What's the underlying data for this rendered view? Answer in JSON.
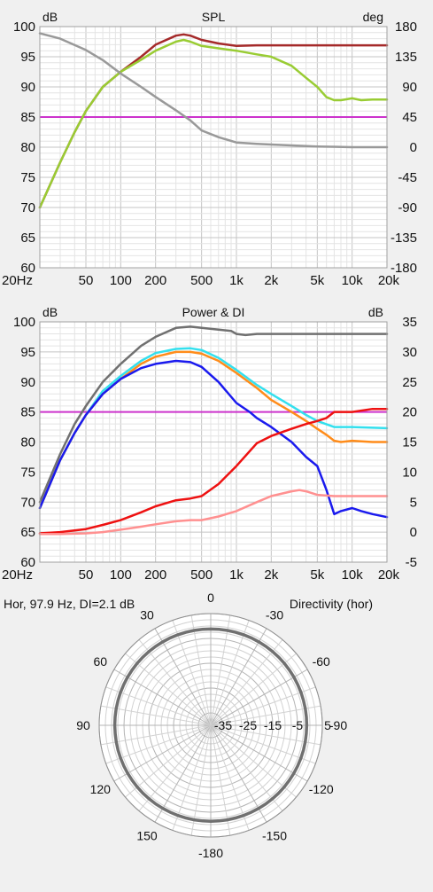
{
  "colors": {
    "background": "#f0f0f0",
    "plot_bg": "#ffffff",
    "grid_major": "#c4c4c4",
    "grid_minor": "#e4e4e4",
    "reference": "#cc33cc"
  },
  "chart_data": [
    {
      "type": "line",
      "title": "SPL",
      "x_scale": "log",
      "xlim": [
        20,
        20000
      ],
      "x_ticks": [
        20,
        50,
        100,
        200,
        500,
        1000,
        2000,
        5000,
        10000,
        20000
      ],
      "x_tick_labels": [
        "20Hz",
        "50",
        "100",
        "200",
        "500",
        "1k",
        "2k",
        "5k",
        "10k",
        "20k"
      ],
      "ylabel_left": "dB",
      "ylim": [
        60,
        100
      ],
      "y_ticks_left": [
        "100",
        "95",
        "90",
        "85",
        "80",
        "75",
        "70",
        "65",
        "60"
      ],
      "ylabel_right": "deg",
      "ylim_right": [
        -180,
        180
      ],
      "y_ticks_right": [
        "180",
        "135",
        "90",
        "45",
        "0",
        "-45",
        "-90",
        "-135",
        "-180"
      ],
      "reference_line_db": 85,
      "grid": true,
      "series": [
        {
          "color": "#a52a2a",
          "axis": "left",
          "points": [
            [
              20,
              70
            ],
            [
              30,
              77.5
            ],
            [
              40,
              82.5
            ],
            [
              50,
              86
            ],
            [
              70,
              90
            ],
            [
              100,
              92.5
            ],
            [
              150,
              95
            ],
            [
              200,
              97
            ],
            [
              300,
              98.5
            ],
            [
              350,
              98.7
            ],
            [
              400,
              98.5
            ],
            [
              500,
              97.8
            ],
            [
              700,
              97.2
            ],
            [
              1000,
              96.8
            ],
            [
              1500,
              96.9
            ],
            [
              2000,
              96.9
            ],
            [
              5000,
              96.9
            ],
            [
              10000,
              96.9
            ],
            [
              20000,
              96.9
            ]
          ]
        },
        {
          "color": "#99cc33",
          "axis": "left",
          "points": [
            [
              20,
              70
            ],
            [
              30,
              77.5
            ],
            [
              40,
              82.5
            ],
            [
              50,
              86
            ],
            [
              70,
              90
            ],
            [
              100,
              92.5
            ],
            [
              150,
              94.5
            ],
            [
              200,
              96
            ],
            [
              300,
              97.5
            ],
            [
              350,
              97.8
            ],
            [
              400,
              97.5
            ],
            [
              500,
              96.8
            ],
            [
              700,
              96.4
            ],
            [
              1000,
              96
            ],
            [
              1500,
              95.4
            ],
            [
              2000,
              95
            ],
            [
              3000,
              93.5
            ],
            [
              4000,
              91.5
            ],
            [
              5000,
              90
            ],
            [
              6000,
              88.3
            ],
            [
              7000,
              87.8
            ],
            [
              8000,
              87.8
            ],
            [
              10000,
              88.1
            ],
            [
              12000,
              87.8
            ],
            [
              15000,
              87.9
            ],
            [
              20000,
              87.9
            ]
          ]
        },
        {
          "color": "#999999",
          "axis": "right",
          "points": [
            [
              20,
              170
            ],
            [
              30,
              162
            ],
            [
              50,
              145
            ],
            [
              70,
              130
            ],
            [
              100,
              110
            ],
            [
              150,
              90
            ],
            [
              200,
              75
            ],
            [
              300,
              55
            ],
            [
              400,
              40
            ],
            [
              500,
              25
            ],
            [
              700,
              15
            ],
            [
              1000,
              7
            ],
            [
              1500,
              5
            ],
            [
              2000,
              4
            ],
            [
              5000,
              1
            ],
            [
              10000,
              0
            ],
            [
              20000,
              0
            ]
          ]
        }
      ]
    },
    {
      "type": "line",
      "title": "Power & DI",
      "x_scale": "log",
      "xlim": [
        20,
        20000
      ],
      "x_ticks": [
        20,
        50,
        100,
        200,
        500,
        1000,
        2000,
        5000,
        10000,
        20000
      ],
      "x_tick_labels": [
        "20Hz",
        "50",
        "100",
        "200",
        "500",
        "1k",
        "2k",
        "5k",
        "10k",
        "20k"
      ],
      "ylabel_left": "dB",
      "ylim": [
        60,
        100
      ],
      "y_ticks_left": [
        "100",
        "95",
        "90",
        "85",
        "80",
        "75",
        "70",
        "65",
        "60"
      ],
      "ylabel_right": "dB",
      "ylim_right": [
        -5,
        35
      ],
      "y_ticks_right": [
        "35",
        "30",
        "25",
        "20",
        "15",
        "10",
        "5",
        "0",
        "-5"
      ],
      "reference_line_db": 85,
      "grid": true,
      "series": [
        {
          "color": "#707070",
          "axis": "left",
          "points": [
            [
              20,
              70
            ],
            [
              30,
              78
            ],
            [
              40,
              83
            ],
            [
              50,
              86
            ],
            [
              70,
              90
            ],
            [
              100,
              93
            ],
            [
              150,
              96
            ],
            [
              200,
              97.5
            ],
            [
              300,
              99
            ],
            [
              400,
              99.2
            ],
            [
              500,
              99
            ],
            [
              700,
              98.7
            ],
            [
              900,
              98.5
            ],
            [
              1000,
              98
            ],
            [
              1200,
              97.8
            ],
            [
              1500,
              98
            ],
            [
              2000,
              98
            ],
            [
              5000,
              98
            ],
            [
              20000,
              98
            ]
          ]
        },
        {
          "color": "#33e0ee",
          "axis": "left",
          "points": [
            [
              20,
              69
            ],
            [
              30,
              77
            ],
            [
              40,
              81.5
            ],
            [
              50,
              84.5
            ],
            [
              70,
              88.5
            ],
            [
              100,
              91
            ],
            [
              150,
              93.5
            ],
            [
              200,
              94.8
            ],
            [
              300,
              95.5
            ],
            [
              400,
              95.6
            ],
            [
              500,
              95.3
            ],
            [
              700,
              94
            ],
            [
              1000,
              92
            ],
            [
              1500,
              89.5
            ],
            [
              2000,
              88
            ],
            [
              3000,
              86
            ],
            [
              4000,
              84.5
            ],
            [
              5000,
              83.5
            ],
            [
              7000,
              82.5
            ],
            [
              10000,
              82.5
            ],
            [
              20000,
              82.3
            ]
          ]
        },
        {
          "color": "#ff8c1a",
          "axis": "left",
          "points": [
            [
              20,
              69
            ],
            [
              30,
              77
            ],
            [
              40,
              81.5
            ],
            [
              50,
              84.5
            ],
            [
              70,
              88
            ],
            [
              100,
              90.5
            ],
            [
              150,
              93
            ],
            [
              200,
              94.2
            ],
            [
              300,
              95
            ],
            [
              400,
              95
            ],
            [
              500,
              94.7
            ],
            [
              700,
              93.5
            ],
            [
              1000,
              91.5
            ],
            [
              1500,
              89
            ],
            [
              2000,
              87
            ],
            [
              3000,
              85
            ],
            [
              4000,
              83.5
            ],
            [
              5000,
              82.2
            ],
            [
              6000,
              81.2
            ],
            [
              7000,
              80.2
            ],
            [
              8000,
              80
            ],
            [
              10000,
              80.2
            ],
            [
              15000,
              80
            ],
            [
              20000,
              80
            ]
          ]
        },
        {
          "color": "#1a1aee",
          "axis": "left",
          "points": [
            [
              20,
              69
            ],
            [
              30,
              77
            ],
            [
              40,
              81.5
            ],
            [
              50,
              84.5
            ],
            [
              70,
              88
            ],
            [
              100,
              90.5
            ],
            [
              150,
              92.3
            ],
            [
              200,
              93
            ],
            [
              300,
              93.5
            ],
            [
              400,
              93.3
            ],
            [
              500,
              92.5
            ],
            [
              700,
              90
            ],
            [
              1000,
              86.5
            ],
            [
              1300,
              85
            ],
            [
              1500,
              84
            ],
            [
              2000,
              82.5
            ],
            [
              3000,
              80
            ],
            [
              4000,
              77.5
            ],
            [
              5000,
              76
            ],
            [
              6000,
              72
            ],
            [
              7000,
              68
            ],
            [
              8000,
              68.5
            ],
            [
              10000,
              69
            ],
            [
              12000,
              68.5
            ],
            [
              15000,
              68
            ],
            [
              20000,
              67.5
            ]
          ]
        },
        {
          "color": "#ee1111",
          "axis": "right",
          "points": [
            [
              20,
              -0.2
            ],
            [
              30,
              0
            ],
            [
              50,
              0.5
            ],
            [
              70,
              1.2
            ],
            [
              100,
              2
            ],
            [
              150,
              3.3
            ],
            [
              200,
              4.3
            ],
            [
              300,
              5.3
            ],
            [
              400,
              5.6
            ],
            [
              500,
              6
            ],
            [
              700,
              8
            ],
            [
              1000,
              11
            ],
            [
              1500,
              14.8
            ],
            [
              2000,
              16
            ],
            [
              3000,
              17.2
            ],
            [
              4000,
              18
            ],
            [
              5000,
              18.5
            ],
            [
              6000,
              19
            ],
            [
              7000,
              20
            ],
            [
              8000,
              20
            ],
            [
              10000,
              20
            ],
            [
              15000,
              20.5
            ],
            [
              20000,
              20.5
            ]
          ]
        },
        {
          "color": "#ff9090",
          "axis": "right",
          "points": [
            [
              20,
              -0.3
            ],
            [
              30,
              -0.3
            ],
            [
              50,
              -0.2
            ],
            [
              70,
              0
            ],
            [
              100,
              0.4
            ],
            [
              150,
              0.9
            ],
            [
              200,
              1.3
            ],
            [
              300,
              1.8
            ],
            [
              400,
              2
            ],
            [
              500,
              2
            ],
            [
              700,
              2.6
            ],
            [
              1000,
              3.5
            ],
            [
              1500,
              5
            ],
            [
              2000,
              6
            ],
            [
              3000,
              6.8
            ],
            [
              3500,
              7
            ],
            [
              4000,
              6.8
            ],
            [
              5000,
              6.2
            ],
            [
              7000,
              6
            ],
            [
              10000,
              6
            ],
            [
              20000,
              6
            ]
          ]
        }
      ]
    },
    {
      "type": "polar",
      "title": "Directivity (hor)",
      "subtitle": "Hor, 97.9 Hz, DI=2.1 dB",
      "angle_labels": [
        {
          "label": "0",
          "angle": 0
        },
        {
          "label": "-30",
          "angle": 30
        },
        {
          "label": "-60",
          "angle": 60
        },
        {
          "label": "-90",
          "angle": 90
        },
        {
          "label": "-120",
          "angle": 120
        },
        {
          "label": "-150",
          "angle": 150
        },
        {
          "label": "-180",
          "angle": 180
        },
        {
          "label": "150",
          "angle": 210
        },
        {
          "label": "120",
          "angle": 240
        },
        {
          "label": "90",
          "angle": 270
        },
        {
          "label": "60",
          "angle": 300
        },
        {
          "label": "30",
          "angle": 330
        }
      ],
      "radial_labels": [
        "-35",
        "-25",
        "-15",
        "-5",
        "5"
      ],
      "radial_min_db": -40,
      "radial_max_db": 5,
      "series": [
        {
          "color": "#707070",
          "values_db": [
            -1.2,
            -1.2,
            -1.25,
            -1.3,
            -1.3,
            -1.35,
            -1.35,
            -1.35,
            -1.3,
            -1.3,
            -1.25,
            -1.2
          ]
        }
      ]
    }
  ]
}
